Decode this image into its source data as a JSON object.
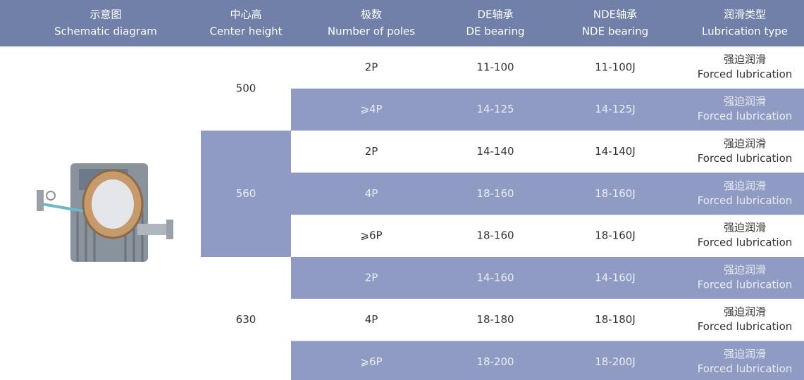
{
  "table": {
    "header": [
      {
        "zh": "示意图",
        "en": "Schematic diagram"
      },
      {
        "zh": "中心高",
        "en": "Center height"
      },
      {
        "zh": "极数",
        "en": "Number of poles"
      },
      {
        "zh": "DE轴承",
        "en": "DE bearing"
      },
      {
        "zh": "NDE轴承",
        "en": "NDE bearing"
      },
      {
        "zh": "润滑类型",
        "en": "Lubrication type"
      }
    ],
    "groups": [
      {
        "center_height": "500",
        "rows": [
          {
            "poles": "2P",
            "de": "11-100",
            "nde": "11-100J",
            "lub_zh": "强迫润滑",
            "lub_en": "Forced lubrication"
          },
          {
            "poles": "⩾4P",
            "de": "14-125",
            "nde": "14-125J",
            "lub_zh": "强迫润滑",
            "lub_en": "Forced lubrication"
          }
        ]
      },
      {
        "center_height": "560",
        "rows": [
          {
            "poles": "2P",
            "de": "14-140",
            "nde": "14-140J",
            "lub_zh": "强迫润滑",
            "lub_en": "Forced lubrication"
          },
          {
            "poles": "4P",
            "de": "18-160",
            "nde": "18-160J",
            "lub_zh": "强迫润滑",
            "lub_en": "Forced lubrication"
          },
          {
            "poles": "⩾6P",
            "de": "18-160",
            "nde": "18-160J",
            "lub_zh": "强迫润滑",
            "lub_en": "Forced lubrication"
          }
        ]
      },
      {
        "center_height": "630",
        "rows": [
          {
            "poles": "2P",
            "de": "14-160",
            "nde": "14-160J",
            "lub_zh": "强迫润滑",
            "lub_en": "Forced lubrication"
          },
          {
            "poles": "4P",
            "de": "18-180",
            "nde": "18-180J",
            "lub_zh": "强迫润滑",
            "lub_en": "Forced lubrication"
          },
          {
            "poles": "⩾6P",
            "de": "18-200",
            "nde": "18-200J",
            "lub_zh": "强迫润滑",
            "lub_en": "Forced lubrication"
          }
        ]
      }
    ]
  }
}
